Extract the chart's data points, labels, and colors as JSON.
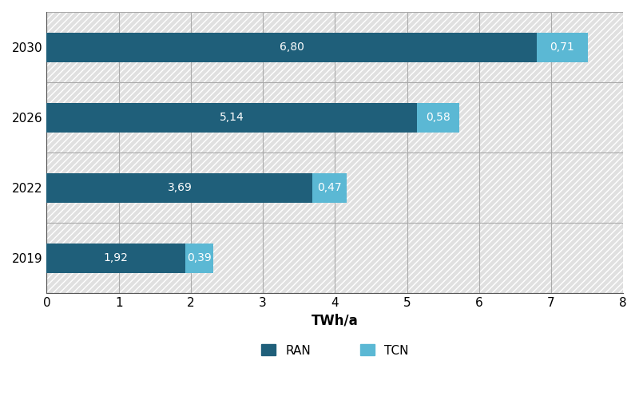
{
  "years": [
    "2019",
    "2022",
    "2026",
    "2030"
  ],
  "ran_values": [
    1.92,
    3.69,
    5.14,
    6.8
  ],
  "tcn_values": [
    0.39,
    0.47,
    0.58,
    0.71
  ],
  "ran_color": "#1f5f7a",
  "tcn_color": "#5bb8d4",
  "ran_label": "RAN",
  "tcn_label": "TCN",
  "xlabel": "TWh/a",
  "xlim": [
    0,
    8
  ],
  "xticks": [
    0,
    1,
    2,
    3,
    4,
    5,
    6,
    7,
    8
  ],
  "bar_height": 0.42,
  "hatch_bg_color": "#d8d8d8",
  "hatch_line_color": "#ffffff",
  "grid_color": "#aaaaaa",
  "label_fontsize": 10,
  "tick_fontsize": 11,
  "xlabel_fontsize": 12,
  "fig_bg": "#ffffff"
}
